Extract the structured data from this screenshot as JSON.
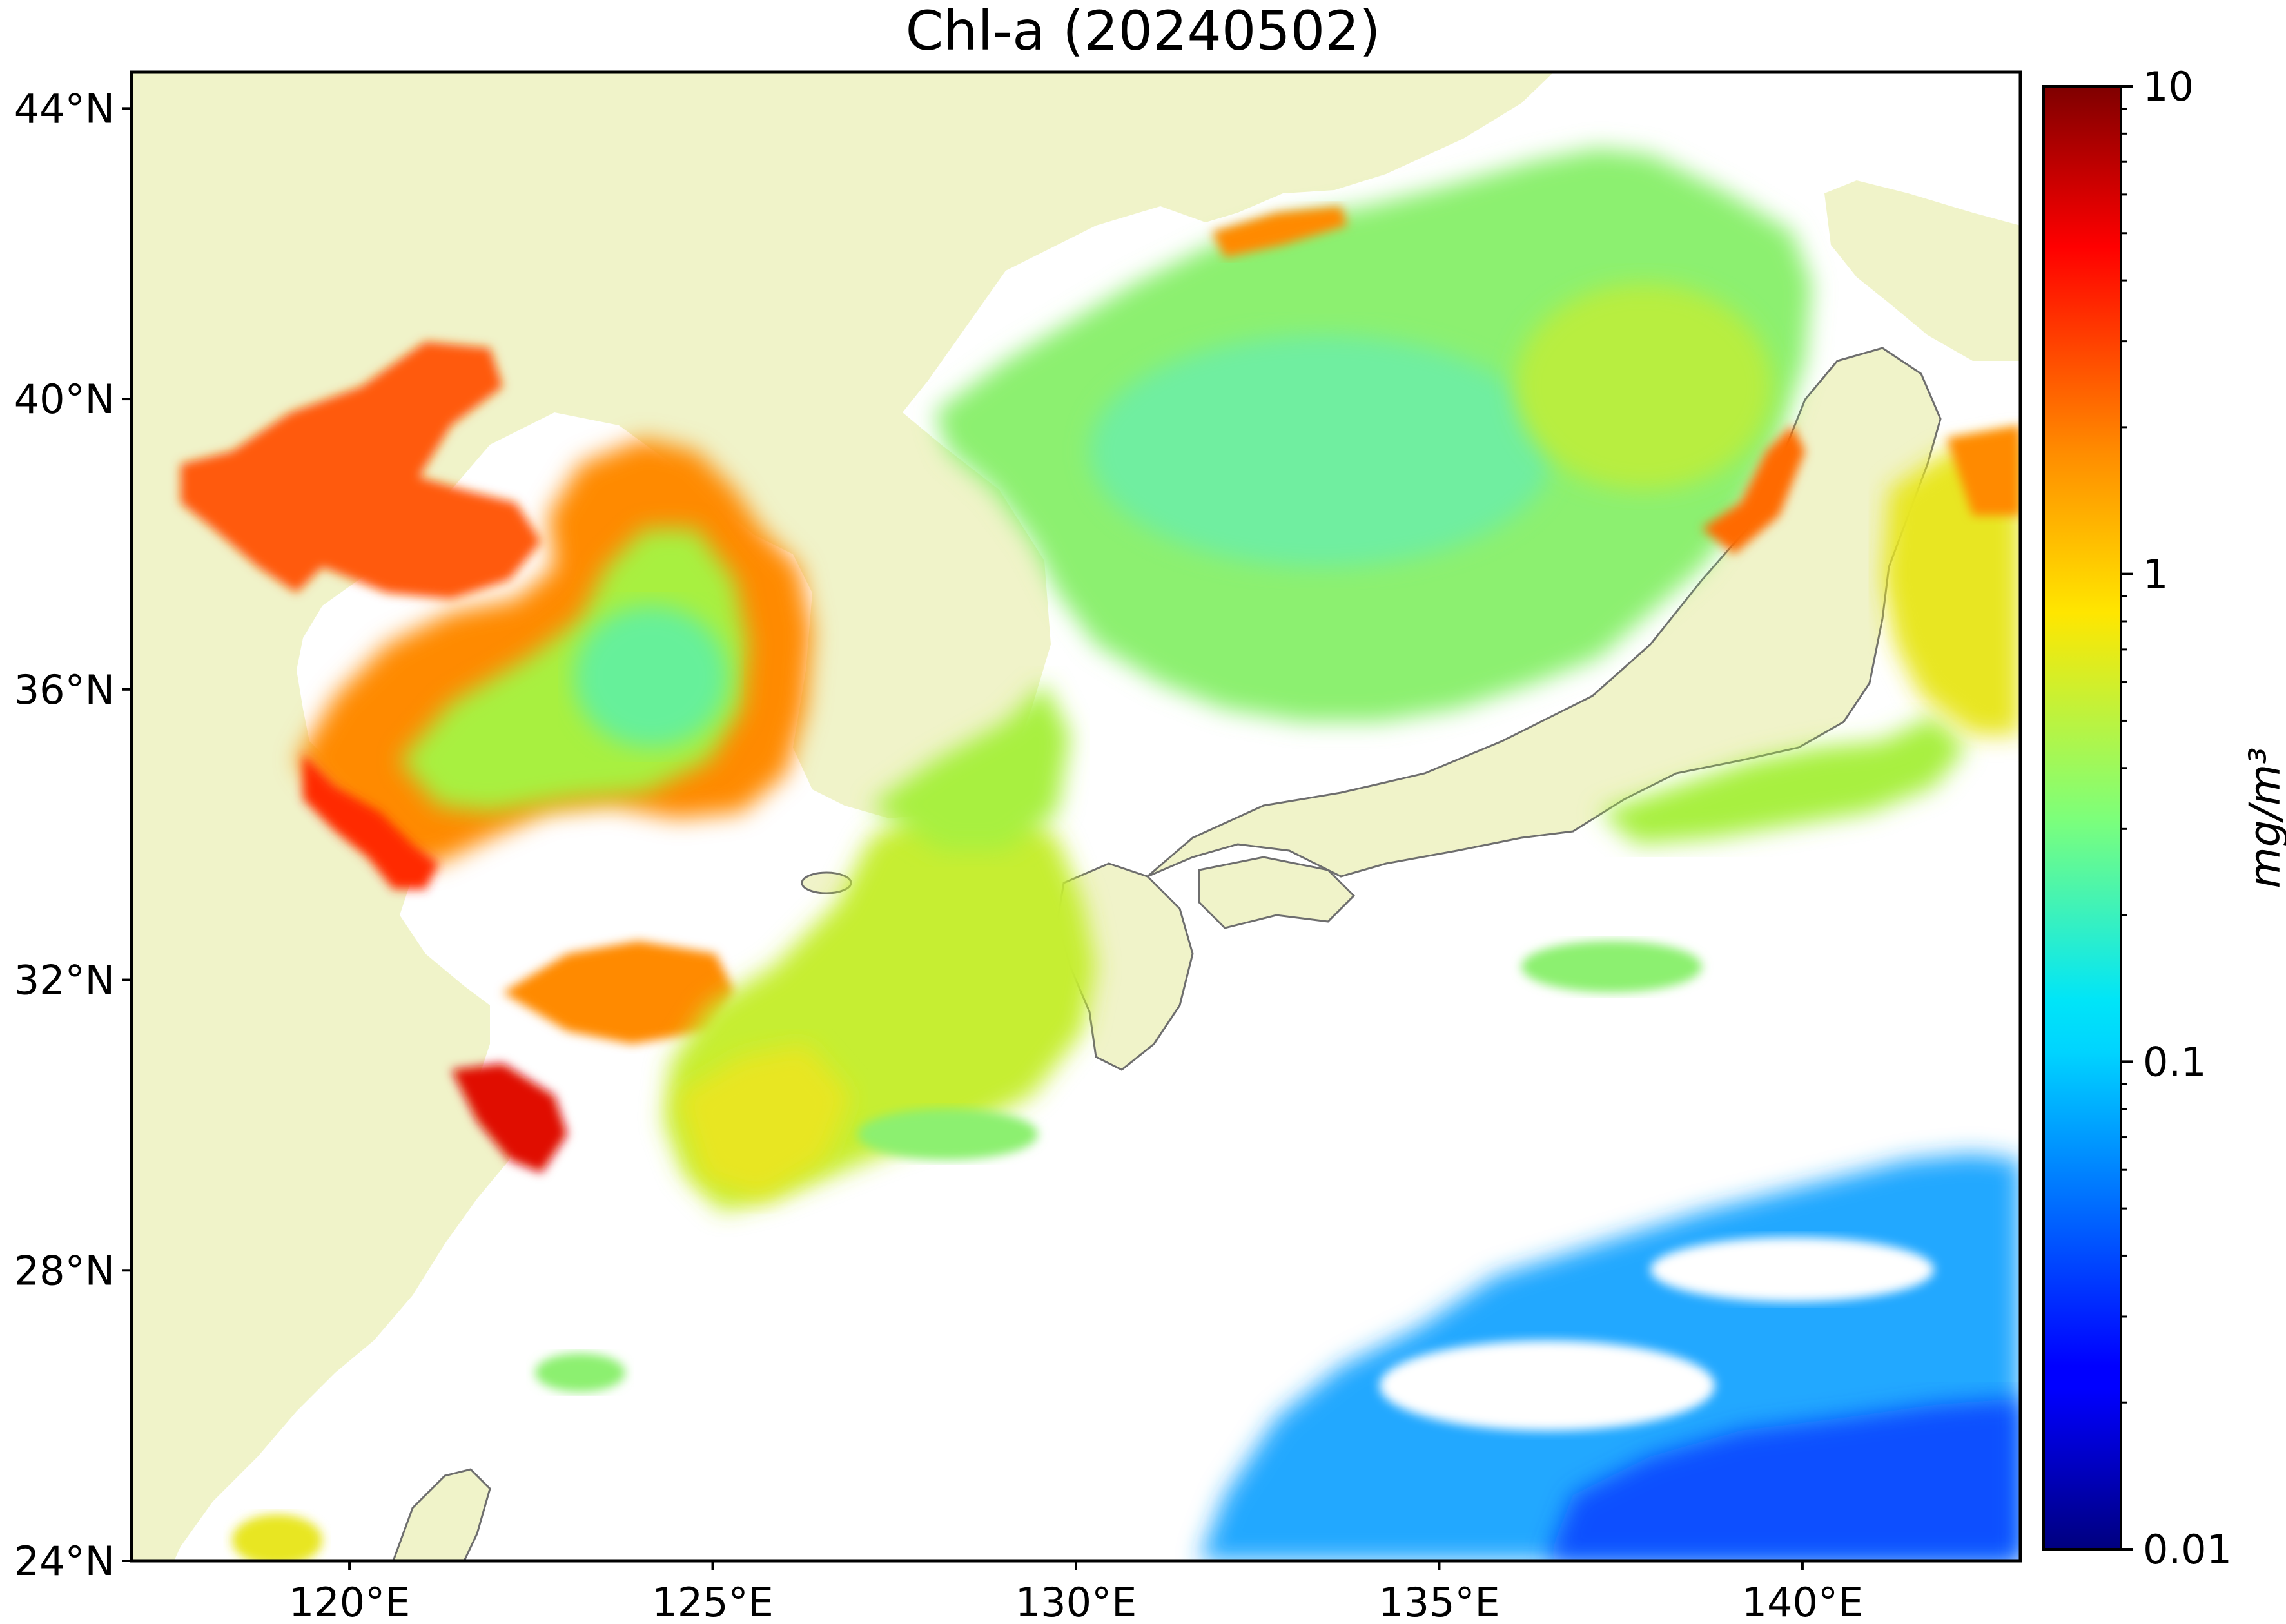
{
  "title": "Chl-a (20240502)",
  "map": {
    "lon_range": [
      117,
      143
    ],
    "lat_range": [
      24,
      44.5
    ],
    "lat_ticks": [
      {
        "value": 44,
        "label": "44°N"
      },
      {
        "value": 40,
        "label": "40°N"
      },
      {
        "value": 36,
        "label": "36°N"
      },
      {
        "value": 32,
        "label": "32°N"
      },
      {
        "value": 28,
        "label": "28°N"
      },
      {
        "value": 24,
        "label": "24°N"
      }
    ],
    "lon_ticks": [
      {
        "value": 120,
        "label": "120°E"
      },
      {
        "value": 125,
        "label": "125°E"
      },
      {
        "value": 130,
        "label": "130°E"
      },
      {
        "value": 135,
        "label": "135°E"
      },
      {
        "value": 140,
        "label": "140°E"
      }
    ],
    "colors": {
      "land": "#f0f3c9",
      "no_data": "#ffffff",
      "coastline": "#6e6e6e"
    }
  },
  "colorbar": {
    "label": "mg/m³",
    "scale": "log",
    "range": [
      0.01,
      10
    ],
    "ticks": [
      {
        "value": 10,
        "label": "10"
      },
      {
        "value": 1,
        "label": "1"
      },
      {
        "value": 0.1,
        "label": "0.1"
      },
      {
        "value": 0.01,
        "label": "0.01"
      }
    ],
    "colormap": "jet"
  }
}
